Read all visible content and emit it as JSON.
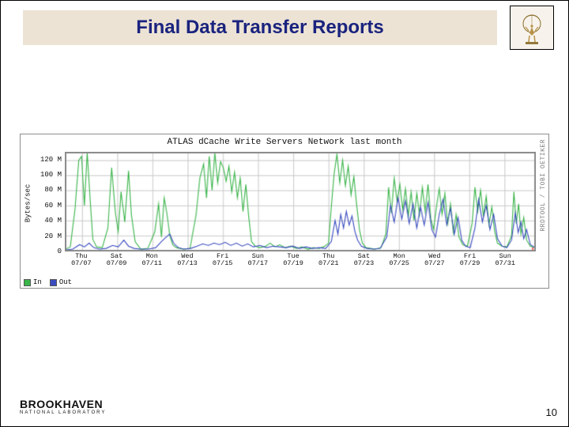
{
  "title": "Final Data Transfer Reports",
  "page_number": "10",
  "logo": {
    "org": "BROOKHAVEN",
    "sub": "NATIONAL LABORATORY"
  },
  "chart": {
    "type": "line",
    "title": "ATLAS dCache Write Servers Network last month",
    "watermark": "RRDTOOL / TOBI OETIKER",
    "ylabel": "Bytes/sec",
    "ylim_min": 0,
    "ylim_max": 130,
    "y_ticks": [
      {
        "v": 0,
        "label": "0"
      },
      {
        "v": 20,
        "label": "20 M"
      },
      {
        "v": 40,
        "label": "40 M"
      },
      {
        "v": 60,
        "label": "60 M"
      },
      {
        "v": 80,
        "label": "80 M"
      },
      {
        "v": 100,
        "label": "100 M"
      },
      {
        "v": 120,
        "label": "120 M"
      }
    ],
    "x_ticks": [
      {
        "pos": 0.035,
        "l1": "Thu",
        "l2": "07/07"
      },
      {
        "pos": 0.11,
        "l1": "Sat",
        "l2": "07/09"
      },
      {
        "pos": 0.185,
        "l1": "Mon",
        "l2": "07/11"
      },
      {
        "pos": 0.26,
        "l1": "Wed",
        "l2": "07/13"
      },
      {
        "pos": 0.335,
        "l1": "Fri",
        "l2": "07/15"
      },
      {
        "pos": 0.41,
        "l1": "Sun",
        "l2": "07/17"
      },
      {
        "pos": 0.485,
        "l1": "Tue",
        "l2": "07/19"
      },
      {
        "pos": 0.56,
        "l1": "Thu",
        "l2": "07/21"
      },
      {
        "pos": 0.635,
        "l1": "Sat",
        "l2": "07/23"
      },
      {
        "pos": 0.71,
        "l1": "Mon",
        "l2": "07/25"
      },
      {
        "pos": 0.785,
        "l1": "Wed",
        "l2": "07/27"
      },
      {
        "pos": 0.86,
        "l1": "Fri",
        "l2": "07/29"
      },
      {
        "pos": 0.935,
        "l1": "Sun",
        "l2": "07/31"
      }
    ],
    "grid_color": "#c9c9c9",
    "axis_color": "#888888",
    "background_color": "#ffffff",
    "red_marker_color": "#ff0000",
    "red_marker_pos": 0.995,
    "legend": [
      {
        "label": "In",
        "color": "#3ab54a"
      },
      {
        "label": "Out",
        "color": "#3b4cc0"
      }
    ],
    "series": [
      {
        "name": "In",
        "color": "#3ab54a",
        "line_width": 1.1,
        "points": [
          [
            0.0,
            2
          ],
          [
            0.01,
            5
          ],
          [
            0.02,
            55
          ],
          [
            0.028,
            120
          ],
          [
            0.034,
            125
          ],
          [
            0.04,
            60
          ],
          [
            0.046,
            130
          ],
          [
            0.052,
            70
          ],
          [
            0.058,
            15
          ],
          [
            0.066,
            5
          ],
          [
            0.078,
            4
          ],
          [
            0.09,
            30
          ],
          [
            0.098,
            110
          ],
          [
            0.106,
            50
          ],
          [
            0.112,
            25
          ],
          [
            0.118,
            78
          ],
          [
            0.126,
            38
          ],
          [
            0.134,
            106
          ],
          [
            0.14,
            48
          ],
          [
            0.148,
            12
          ],
          [
            0.16,
            2
          ],
          [
            0.175,
            3
          ],
          [
            0.19,
            25
          ],
          [
            0.198,
            62
          ],
          [
            0.204,
            18
          ],
          [
            0.21,
            70
          ],
          [
            0.216,
            48
          ],
          [
            0.222,
            20
          ],
          [
            0.228,
            8
          ],
          [
            0.236,
            4
          ],
          [
            0.25,
            2
          ],
          [
            0.265,
            3
          ],
          [
            0.278,
            48
          ],
          [
            0.286,
            96
          ],
          [
            0.294,
            115
          ],
          [
            0.3,
            70
          ],
          [
            0.306,
            125
          ],
          [
            0.312,
            80
          ],
          [
            0.318,
            130
          ],
          [
            0.324,
            90
          ],
          [
            0.33,
            118
          ],
          [
            0.336,
            110
          ],
          [
            0.342,
            92
          ],
          [
            0.348,
            112
          ],
          [
            0.354,
            78
          ],
          [
            0.36,
            104
          ],
          [
            0.366,
            70
          ],
          [
            0.372,
            96
          ],
          [
            0.378,
            52
          ],
          [
            0.384,
            88
          ],
          [
            0.39,
            46
          ],
          [
            0.396,
            12
          ],
          [
            0.404,
            6
          ],
          [
            0.414,
            4
          ],
          [
            0.426,
            6
          ],
          [
            0.436,
            10
          ],
          [
            0.446,
            5
          ],
          [
            0.456,
            8
          ],
          [
            0.468,
            4
          ],
          [
            0.48,
            6
          ],
          [
            0.492,
            3
          ],
          [
            0.504,
            5
          ],
          [
            0.516,
            2
          ],
          [
            0.528,
            4
          ],
          [
            0.54,
            3
          ],
          [
            0.552,
            6
          ],
          [
            0.56,
            10
          ],
          [
            0.566,
            58
          ],
          [
            0.572,
            102
          ],
          [
            0.578,
            128
          ],
          [
            0.584,
            90
          ],
          [
            0.59,
            120
          ],
          [
            0.596,
            86
          ],
          [
            0.602,
            112
          ],
          [
            0.608,
            74
          ],
          [
            0.614,
            98
          ],
          [
            0.62,
            60
          ],
          [
            0.626,
            28
          ],
          [
            0.632,
            10
          ],
          [
            0.64,
            4
          ],
          [
            0.65,
            3
          ],
          [
            0.66,
            2
          ],
          [
            0.672,
            4
          ],
          [
            0.682,
            22
          ],
          [
            0.688,
            84
          ],
          [
            0.694,
            50
          ],
          [
            0.7,
            96
          ],
          [
            0.706,
            66
          ],
          [
            0.712,
            88
          ],
          [
            0.718,
            54
          ],
          [
            0.724,
            82
          ],
          [
            0.73,
            46
          ],
          [
            0.736,
            78
          ],
          [
            0.742,
            40
          ],
          [
            0.748,
            76
          ],
          [
            0.754,
            48
          ],
          [
            0.76,
            84
          ],
          [
            0.766,
            52
          ],
          [
            0.772,
            88
          ],
          [
            0.778,
            42
          ],
          [
            0.784,
            28
          ],
          [
            0.79,
            58
          ],
          [
            0.796,
            82
          ],
          [
            0.802,
            48
          ],
          [
            0.808,
            76
          ],
          [
            0.814,
            36
          ],
          [
            0.82,
            62
          ],
          [
            0.826,
            24
          ],
          [
            0.832,
            48
          ],
          [
            0.838,
            18
          ],
          [
            0.846,
            8
          ],
          [
            0.856,
            6
          ],
          [
            0.866,
            36
          ],
          [
            0.872,
            84
          ],
          [
            0.878,
            52
          ],
          [
            0.884,
            80
          ],
          [
            0.89,
            46
          ],
          [
            0.896,
            72
          ],
          [
            0.902,
            34
          ],
          [
            0.908,
            58
          ],
          [
            0.914,
            26
          ],
          [
            0.92,
            10
          ],
          [
            0.93,
            6
          ],
          [
            0.94,
            5
          ],
          [
            0.95,
            20
          ],
          [
            0.955,
            78
          ],
          [
            0.96,
            36
          ],
          [
            0.965,
            62
          ],
          [
            0.97,
            22
          ],
          [
            0.976,
            44
          ],
          [
            0.982,
            14
          ],
          [
            0.99,
            6
          ],
          [
            1.0,
            4
          ]
        ]
      },
      {
        "name": "Out",
        "color": "#3b4cc0",
        "line_width": 1.1,
        "points": [
          [
            0.0,
            1
          ],
          [
            0.015,
            2
          ],
          [
            0.03,
            8
          ],
          [
            0.04,
            5
          ],
          [
            0.05,
            10
          ],
          [
            0.06,
            4
          ],
          [
            0.072,
            2
          ],
          [
            0.086,
            3
          ],
          [
            0.1,
            7
          ],
          [
            0.112,
            5
          ],
          [
            0.124,
            14
          ],
          [
            0.134,
            6
          ],
          [
            0.146,
            3
          ],
          [
            0.16,
            2
          ],
          [
            0.176,
            2
          ],
          [
            0.192,
            4
          ],
          [
            0.204,
            12
          ],
          [
            0.214,
            18
          ],
          [
            0.222,
            22
          ],
          [
            0.23,
            10
          ],
          [
            0.24,
            4
          ],
          [
            0.252,
            2
          ],
          [
            0.266,
            3
          ],
          [
            0.28,
            6
          ],
          [
            0.292,
            9
          ],
          [
            0.304,
            7
          ],
          [
            0.316,
            10
          ],
          [
            0.328,
            8
          ],
          [
            0.34,
            11
          ],
          [
            0.352,
            7
          ],
          [
            0.364,
            10
          ],
          [
            0.376,
            6
          ],
          [
            0.388,
            9
          ],
          [
            0.4,
            5
          ],
          [
            0.414,
            7
          ],
          [
            0.428,
            4
          ],
          [
            0.442,
            6
          ],
          [
            0.456,
            5
          ],
          [
            0.47,
            4
          ],
          [
            0.484,
            6
          ],
          [
            0.498,
            3
          ],
          [
            0.512,
            5
          ],
          [
            0.526,
            3
          ],
          [
            0.54,
            4
          ],
          [
            0.554,
            3
          ],
          [
            0.566,
            12
          ],
          [
            0.574,
            40
          ],
          [
            0.58,
            22
          ],
          [
            0.586,
            48
          ],
          [
            0.592,
            30
          ],
          [
            0.598,
            52
          ],
          [
            0.604,
            34
          ],
          [
            0.61,
            46
          ],
          [
            0.616,
            26
          ],
          [
            0.622,
            14
          ],
          [
            0.63,
            6
          ],
          [
            0.642,
            3
          ],
          [
            0.656,
            2
          ],
          [
            0.67,
            3
          ],
          [
            0.684,
            18
          ],
          [
            0.692,
            60
          ],
          [
            0.7,
            38
          ],
          [
            0.708,
            70
          ],
          [
            0.716,
            42
          ],
          [
            0.724,
            66
          ],
          [
            0.732,
            36
          ],
          [
            0.74,
            62
          ],
          [
            0.748,
            30
          ],
          [
            0.756,
            58
          ],
          [
            0.764,
            34
          ],
          [
            0.772,
            64
          ],
          [
            0.78,
            28
          ],
          [
            0.788,
            18
          ],
          [
            0.796,
            48
          ],
          [
            0.804,
            68
          ],
          [
            0.812,
            34
          ],
          [
            0.82,
            56
          ],
          [
            0.828,
            22
          ],
          [
            0.836,
            44
          ],
          [
            0.844,
            14
          ],
          [
            0.852,
            6
          ],
          [
            0.862,
            4
          ],
          [
            0.872,
            30
          ],
          [
            0.88,
            68
          ],
          [
            0.888,
            38
          ],
          [
            0.896,
            60
          ],
          [
            0.904,
            28
          ],
          [
            0.912,
            48
          ],
          [
            0.92,
            16
          ],
          [
            0.93,
            6
          ],
          [
            0.94,
            4
          ],
          [
            0.95,
            14
          ],
          [
            0.958,
            50
          ],
          [
            0.964,
            24
          ],
          [
            0.97,
            38
          ],
          [
            0.976,
            16
          ],
          [
            0.982,
            28
          ],
          [
            0.99,
            8
          ],
          [
            1.0,
            4
          ]
        ]
      }
    ]
  }
}
